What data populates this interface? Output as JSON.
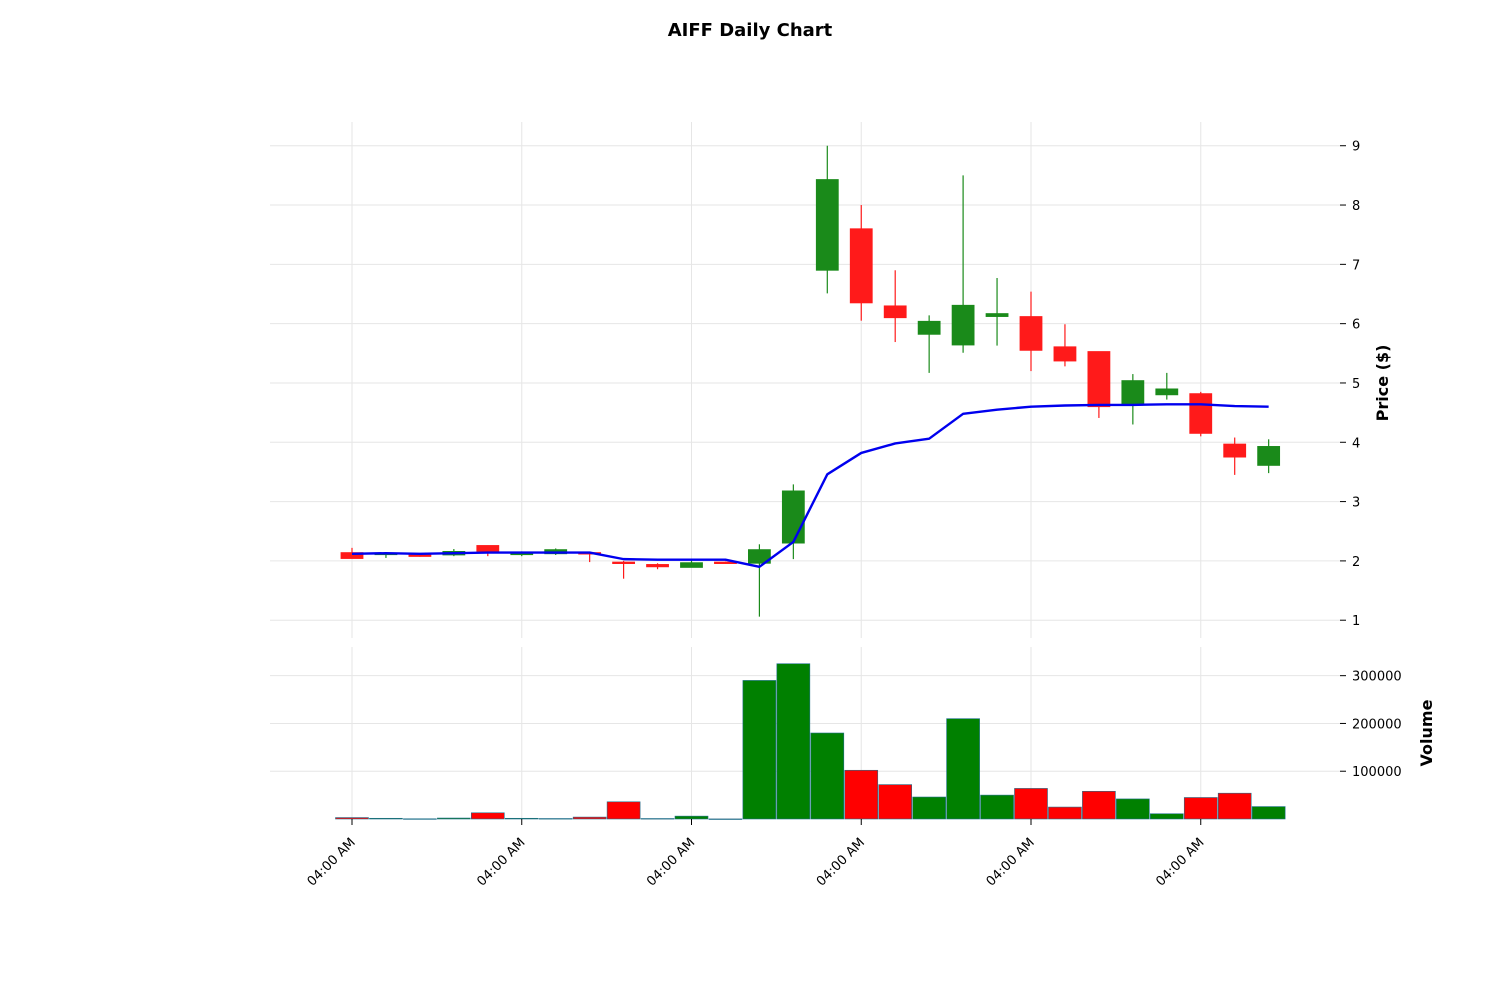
{
  "chart_data": {
    "type": "candlestick",
    "title": "AIFF Daily Chart",
    "price_panel": {
      "ylabel": "Price ($)",
      "ylim": [
        0.7,
        9.4
      ],
      "yticks": [
        1,
        2,
        3,
        4,
        5,
        6,
        7,
        8,
        9
      ],
      "grid": true
    },
    "volume_panel": {
      "ylabel": "Volume",
      "ylim": [
        0,
        360000
      ],
      "yticks": [
        100000,
        200000,
        300000
      ],
      "ytick_labels": [
        "100000",
        "200000",
        "300000"
      ],
      "grid": true
    },
    "x_tick_labels": [
      {
        "index": 0,
        "label": "04:00 AM"
      },
      {
        "index": 5,
        "label": "04:00 AM"
      },
      {
        "index": 10,
        "label": "04:00 AM"
      },
      {
        "index": 15,
        "label": "04:00 AM"
      },
      {
        "index": 20,
        "label": "04:00 AM"
      },
      {
        "index": 25,
        "label": "04:00 AM"
      }
    ],
    "up_color": "#1a8a1a",
    "down_color": "#ff1a1a",
    "volume_up_color": "#008000",
    "volume_down_color": "#ff0000",
    "ma_color": "#0000ee",
    "candles": [
      {
        "open": 2.14,
        "high": 2.22,
        "low": 2.04,
        "close": 2.04,
        "volume": 3000
      },
      {
        "open": 2.12,
        "high": 2.13,
        "low": 2.05,
        "close": 2.13,
        "volume": 1500
      },
      {
        "open": 2.1,
        "high": 2.12,
        "low": 2.07,
        "close": 2.08,
        "volume": 500
      },
      {
        "open": 2.1,
        "high": 2.2,
        "low": 2.08,
        "close": 2.16,
        "volume": 2000
      },
      {
        "open": 2.26,
        "high": 2.26,
        "low": 2.08,
        "close": 2.16,
        "volume": 13000
      },
      {
        "open": 2.12,
        "high": 2.16,
        "low": 2.08,
        "close": 2.13,
        "volume": 1500
      },
      {
        "open": 2.12,
        "high": 2.21,
        "low": 2.1,
        "close": 2.19,
        "volume": 1000
      },
      {
        "open": 2.14,
        "high": 2.15,
        "low": 1.98,
        "close": 2.12,
        "volume": 4000
      },
      {
        "open": 1.98,
        "high": 2.0,
        "low": 1.7,
        "close": 1.96,
        "volume": 36000
      },
      {
        "open": 1.94,
        "high": 1.96,
        "low": 1.86,
        "close": 1.9,
        "volume": 1000
      },
      {
        "open": 1.89,
        "high": 2.01,
        "low": 1.89,
        "close": 1.97,
        "volume": 6000
      },
      {
        "open": 1.98,
        "high": 1.99,
        "low": 1.96,
        "close": 1.97,
        "volume": 200
      },
      {
        "open": 1.96,
        "high": 2.28,
        "low": 1.06,
        "close": 2.19,
        "volume": 290000
      },
      {
        "open": 2.3,
        "high": 3.29,
        "low": 2.03,
        "close": 3.18,
        "volume": 325000
      },
      {
        "open": 6.9,
        "high": 9.0,
        "low": 6.51,
        "close": 8.43,
        "volume": 180000
      },
      {
        "open": 7.6,
        "high": 8.0,
        "low": 6.05,
        "close": 6.35,
        "volume": 102000
      },
      {
        "open": 6.3,
        "high": 6.9,
        "low": 5.69,
        "close": 6.1,
        "volume": 72000
      },
      {
        "open": 5.82,
        "high": 6.14,
        "low": 5.17,
        "close": 6.04,
        "volume": 46000
      },
      {
        "open": 5.64,
        "high": 8.5,
        "low": 5.51,
        "close": 6.31,
        "volume": 210000
      },
      {
        "open": 6.12,
        "high": 6.77,
        "low": 5.63,
        "close": 6.17,
        "volume": 50000
      },
      {
        "open": 6.12,
        "high": 6.54,
        "low": 5.2,
        "close": 5.55,
        "volume": 64000
      },
      {
        "open": 5.61,
        "high": 5.99,
        "low": 5.28,
        "close": 5.37,
        "volume": 25000
      },
      {
        "open": 5.53,
        "high": 5.53,
        "low": 4.41,
        "close": 4.6,
        "volume": 58000
      },
      {
        "open": 4.63,
        "high": 5.15,
        "low": 4.3,
        "close": 5.04,
        "volume": 42000
      },
      {
        "open": 4.8,
        "high": 5.17,
        "low": 4.72,
        "close": 4.9,
        "volume": 11000
      },
      {
        "open": 4.82,
        "high": 4.85,
        "low": 4.1,
        "close": 4.15,
        "volume": 45000
      },
      {
        "open": 3.97,
        "high": 4.08,
        "low": 3.45,
        "close": 3.75,
        "volume": 54000
      },
      {
        "open": 3.61,
        "high": 4.05,
        "low": 3.48,
        "close": 3.93,
        "volume": 26000
      }
    ],
    "moving_average": [
      2.12,
      2.13,
      2.12,
      2.13,
      2.14,
      2.14,
      2.14,
      2.14,
      2.03,
      2.02,
      2.02,
      2.02,
      1.9,
      2.32,
      3.46,
      3.82,
      3.98,
      4.06,
      4.48,
      4.55,
      4.6,
      4.62,
      4.63,
      4.63,
      4.64,
      4.64,
      4.61,
      4.6
    ]
  }
}
